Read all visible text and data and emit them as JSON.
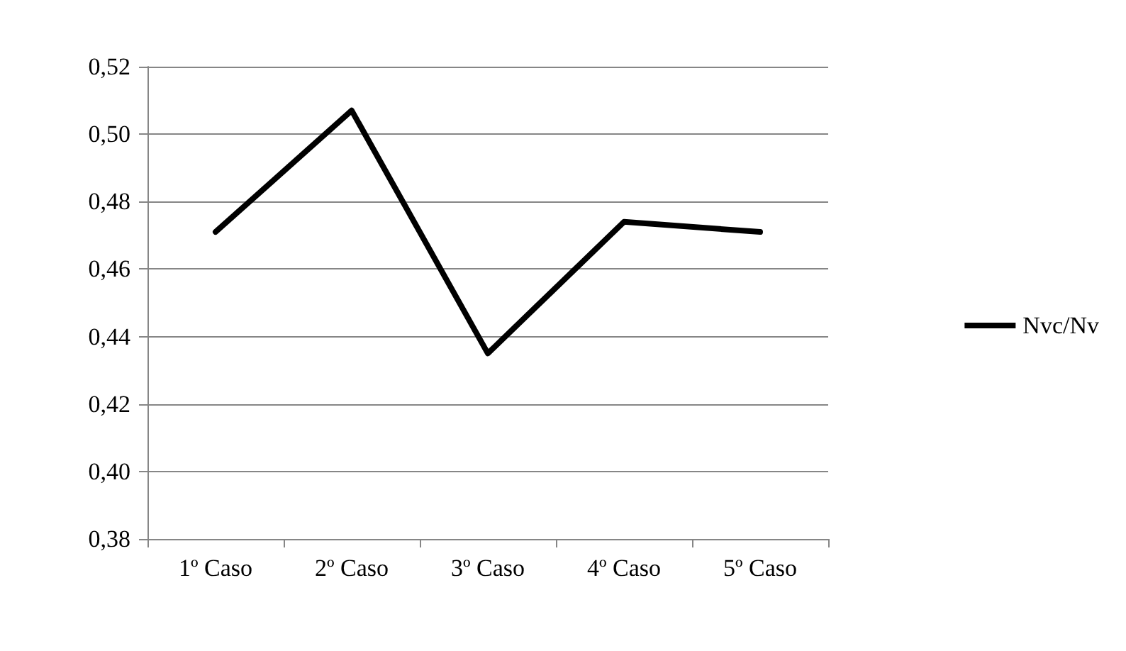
{
  "chart_data": {
    "type": "line",
    "categories": [
      "1º Caso",
      "2º Caso",
      "3º Caso",
      "4º Caso",
      "5º Caso"
    ],
    "series": [
      {
        "name": "Nvc/Nv",
        "color": "#000000",
        "values": [
          0.471,
          0.507,
          0.435,
          0.474,
          0.471
        ]
      }
    ],
    "ylim": [
      0.38,
      0.52
    ],
    "yticks": [
      {
        "value": 0.38,
        "label": "0,38"
      },
      {
        "value": 0.4,
        "label": "0,40"
      },
      {
        "value": 0.42,
        "label": "0,42"
      },
      {
        "value": 0.44,
        "label": "0,44"
      },
      {
        "value": 0.46,
        "label": "0,46"
      },
      {
        "value": 0.48,
        "label": "0,48"
      },
      {
        "value": 0.5,
        "label": "0,50"
      },
      {
        "value": 0.52,
        "label": "0,52"
      }
    ],
    "grid": "y",
    "legend": "right",
    "marker": "none",
    "line_style": "solid"
  }
}
